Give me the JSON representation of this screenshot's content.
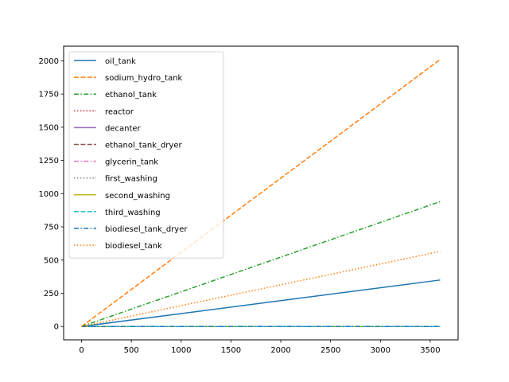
{
  "chart_data": {
    "type": "line",
    "title": "",
    "xlabel": "",
    "ylabel": "",
    "xlim": [
      -180,
      3780
    ],
    "ylim": [
      -100.5,
      2110.5
    ],
    "xticks": [
      0,
      500,
      1000,
      1500,
      2000,
      2500,
      3000,
      3500
    ],
    "yticks": [
      0,
      250,
      500,
      750,
      1000,
      1250,
      1500,
      1750,
      2000
    ],
    "grid": false,
    "legend_position": "upper-left",
    "x": [
      0,
      3600
    ],
    "series": [
      {
        "name": "oil_tank",
        "color": "#1f77b4",
        "dash": "solid",
        "values": [
          0,
          350
        ]
      },
      {
        "name": "sodium_hydro_tank",
        "color": "#ff7f0e",
        "dash": "dashed",
        "values": [
          0,
          2010
        ]
      },
      {
        "name": "ethanol_tank",
        "color": "#2ca02c",
        "dash": "dashdot",
        "values": [
          0,
          940
        ]
      },
      {
        "name": "reactor",
        "color": "#d62728",
        "dash": "dotted",
        "values": [
          0,
          0
        ]
      },
      {
        "name": "decanter",
        "color": "#9467bd",
        "dash": "solid",
        "values": [
          0,
          0
        ]
      },
      {
        "name": "ethanol_tank_dryer",
        "color": "#8c564b",
        "dash": "dashed",
        "values": [
          0,
          0
        ]
      },
      {
        "name": "glycerin_tank",
        "color": "#e377c2",
        "dash": "dashdot",
        "values": [
          0,
          0
        ]
      },
      {
        "name": "first_washing",
        "color": "#7f7f7f",
        "dash": "dotted",
        "values": [
          0,
          0
        ]
      },
      {
        "name": "second_washing",
        "color": "#bcbd22",
        "dash": "solid",
        "values": [
          0,
          0
        ]
      },
      {
        "name": "third_washing",
        "color": "#17becf",
        "dash": "dashed",
        "values": [
          0,
          0
        ]
      },
      {
        "name": "biodiesel_tank_dryer",
        "color": "#1f77b4",
        "dash": "dashdot",
        "values": [
          0,
          0
        ]
      },
      {
        "name": "biodiesel_tank",
        "color": "#ff7f0e",
        "dash": "dotted",
        "values": [
          0,
          565
        ]
      }
    ]
  }
}
